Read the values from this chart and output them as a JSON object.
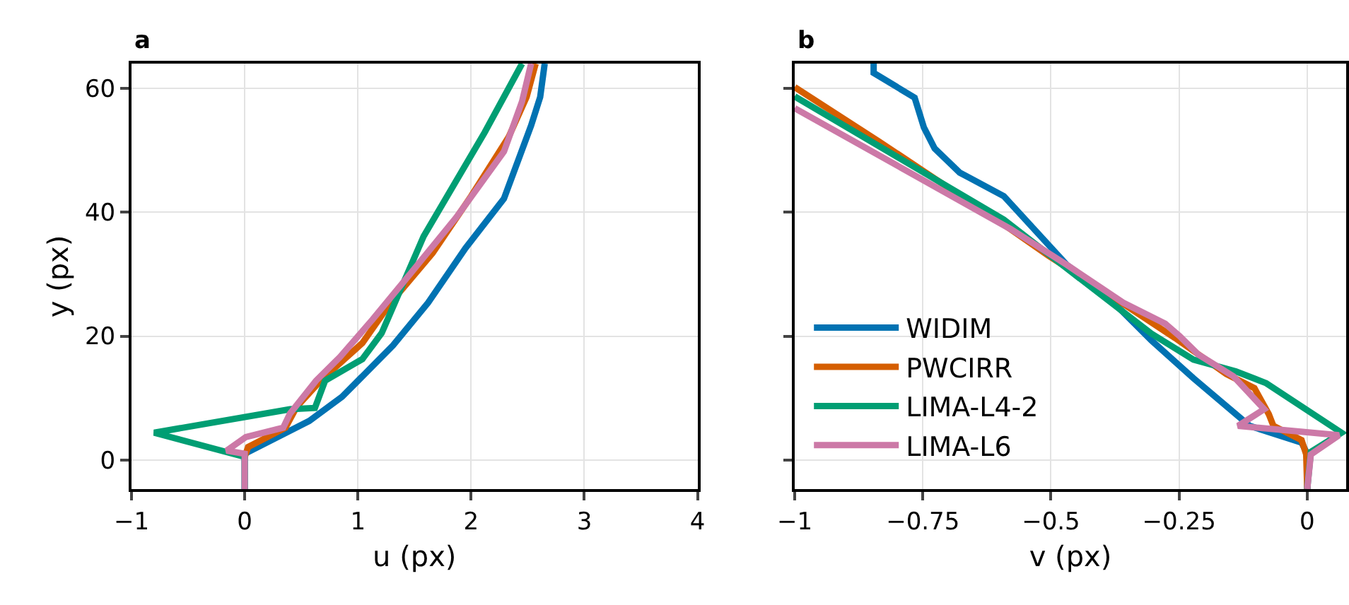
{
  "chart_data": [
    {
      "type": "line",
      "title": "a",
      "xlabel": "u (px)",
      "ylabel": "y (px)",
      "xlim": [
        -1,
        4
      ],
      "xticks": [
        {
          "value": -1,
          "label": "−1"
        },
        0,
        1,
        2,
        3,
        4
      ],
      "ylim": [
        -4.7,
        64
      ],
      "yticks": [
        0,
        20,
        40,
        60
      ],
      "grid": true,
      "legend": false,
      "line_style": "solid",
      "marker": "none",
      "series": [
        {
          "color": "#0072b2",
          "x": [
            0,
            0,
            0.57,
            0.86,
            1.31,
            1.62,
            1.95,
            2.29,
            2.53,
            2.61,
            2.65
          ],
          "values": [
            -4.7,
            1,
            6.3,
            10.2,
            18.5,
            25.4,
            34.2,
            42.2,
            54,
            58.6,
            64
          ]
        },
        {
          "color": "#d55e00",
          "x": [
            0,
            0.03,
            0.36,
            0.46,
            0.67,
            1.04,
            1.29,
            1.66,
            2.0,
            2.33,
            2.49,
            2.57
          ],
          "values": [
            0.5,
            2.1,
            5.2,
            8.6,
            12.8,
            18.9,
            25.4,
            33.4,
            42.6,
            52.1,
            58.6,
            64
          ]
        },
        {
          "color": "#009e73",
          "x": [
            0,
            0,
            -0.8,
            0.4,
            0.62,
            0.71,
            1.04,
            1.21,
            1.58,
            2.12,
            2.45
          ],
          "values": [
            -4.7,
            0.5,
            4.4,
            8.2,
            8.4,
            12.8,
            16.3,
            20.5,
            36.1,
            52.9,
            64
          ]
        },
        {
          "color": "#cc79a7",
          "x": [
            0,
            0,
            -0.16,
            0.01,
            0.34,
            0.4,
            0.63,
            0.84,
            1.13,
            1.46,
            1.87,
            2.29,
            2.45,
            2.53
          ],
          "values": [
            -4.7,
            1,
            1.5,
            3.7,
            5.2,
            7.5,
            12.8,
            16.6,
            22.7,
            30,
            39.2,
            49.8,
            57.9,
            64
          ]
        }
      ]
    },
    {
      "type": "line",
      "title": "b",
      "xlabel": "v (px)",
      "xlim": [
        -1,
        0.076
      ],
      "xticks": [
        {
          "value": -1,
          "label": "−1"
        },
        {
          "value": -0.75,
          "label": "−0.75"
        },
        {
          "value": -0.5,
          "label": "−0.5"
        },
        {
          "value": -0.25,
          "label": "−0.25"
        },
        0
      ],
      "ylim": [
        -4.7,
        64
      ],
      "yticks": [
        0,
        20,
        40,
        60
      ],
      "tick_labels": "x",
      "grid": true,
      "legend": "bottom left",
      "line_style": "solid",
      "marker": "none",
      "series": [
        {
          "name": "WIDIM",
          "color": "#0072b2",
          "x": [
            -0.846,
            -0.846,
            -0.766,
            -0.748,
            -0.727,
            -0.678,
            -0.592,
            -0.469,
            -0.396,
            -0.304,
            -0.222,
            -0.112,
            -0.011,
            0,
            0
          ],
          "values": [
            64,
            62.5,
            58.5,
            53.7,
            50.3,
            46.4,
            42.6,
            31.5,
            26.9,
            19.3,
            13.2,
            5.5,
            2.8,
            1,
            -4.7
          ]
        },
        {
          "name": "PWCIRR",
          "color": "#d55e00",
          "x": [
            -1,
            -0.835,
            -0.592,
            -0.505,
            -0.377,
            -0.258,
            -0.158,
            -0.103,
            -0.075,
            -0.066,
            -0.011,
            -0.002,
            0
          ],
          "values": [
            60.2,
            51.4,
            38,
            33,
            26.2,
            19.7,
            13.9,
            11.6,
            7.4,
            5.5,
            3.2,
            0.9,
            -4.7
          ]
        },
        {
          "name": "LIMA-L4-2",
          "color": "#009e73",
          "x": [
            -1,
            -0.592,
            -0.478,
            -0.304,
            -0.222,
            -0.139,
            -0.08,
            0.067,
            0.007,
            0
          ],
          "values": [
            58.7,
            38.8,
            31.5,
            20.4,
            16.2,
            14.3,
            12.4,
            4.4,
            1.3,
            -4.7
          ]
        },
        {
          "name": "LIMA-L6",
          "color": "#cc79a7",
          "x": [
            -1,
            -0.579,
            -0.469,
            -0.359,
            -0.277,
            -0.249,
            -0.212,
            -0.144,
            -0.084,
            -0.135,
            0.062,
            0.007,
            0
          ],
          "values": [
            56.8,
            37.3,
            31.5,
            25.4,
            22,
            20,
            17,
            13.5,
            8.2,
            5.5,
            4,
            0.9,
            -4.7
          ]
        }
      ]
    }
  ]
}
